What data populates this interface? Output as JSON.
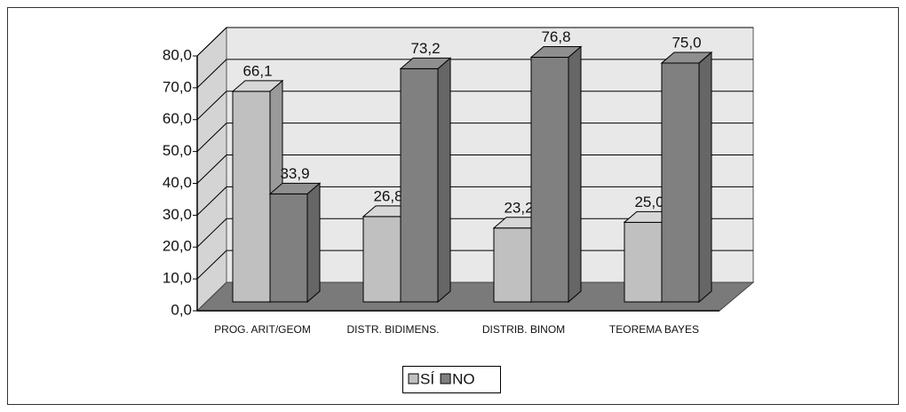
{
  "chart_data": {
    "type": "bar3d",
    "categories": [
      "PROG. ARIT/GEOM",
      "DISTR. BIDIMENS.",
      "DISTRIB. BINOM",
      "TEOREMA BAYES"
    ],
    "series": [
      {
        "name": "SÍ",
        "color": "#c0c0c0",
        "values": [
          66.1,
          26.8,
          23.2,
          25.0
        ],
        "value_labels": [
          "66,1",
          "26,8",
          "23,2",
          "25,0"
        ]
      },
      {
        "name": "NO",
        "color": "#808080",
        "values": [
          33.9,
          73.2,
          76.8,
          75.0
        ],
        "value_labels": [
          "33,9",
          "73,2",
          "76,8",
          "75,0"
        ]
      }
    ],
    "ylim": [
      0,
      80
    ],
    "yticks": [
      {
        "value": 0,
        "label": "0,0"
      },
      {
        "value": 10,
        "label": "10,0"
      },
      {
        "value": 20,
        "label": "20,0"
      },
      {
        "value": 30,
        "label": "30,0"
      },
      {
        "value": 40,
        "label": "40,0"
      },
      {
        "value": 50,
        "label": "50,0"
      },
      {
        "value": 60,
        "label": "60,0"
      },
      {
        "value": 70,
        "label": "70,0"
      },
      {
        "value": 80,
        "label": "80,0"
      }
    ],
    "grid": true,
    "legend": "bottom"
  }
}
